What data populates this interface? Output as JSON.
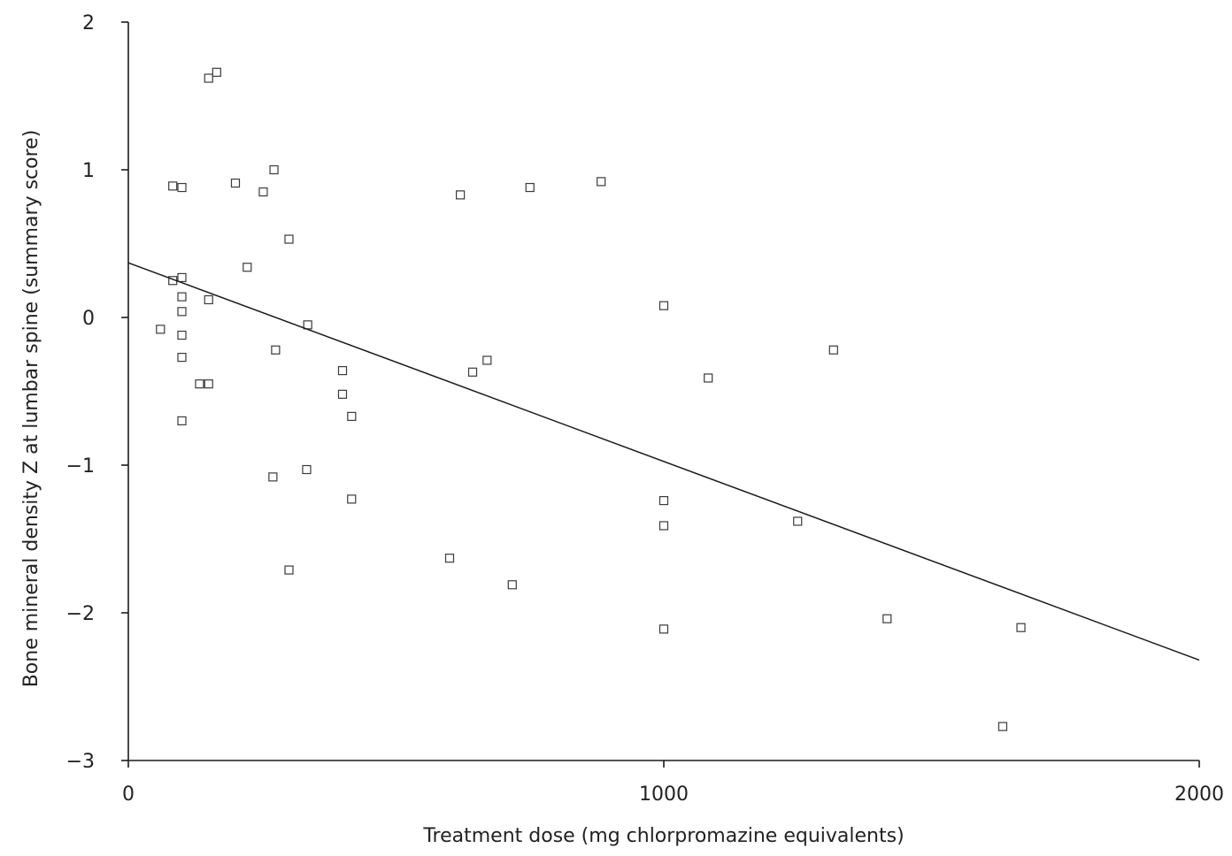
{
  "chart_data": {
    "type": "scatter",
    "title": "",
    "xlabel": "Treatment dose (mg chlorpromazine equivalents)",
    "ylabel": "Bone mineral density Z at lumbar spine (summary score)",
    "xlim": [
      0,
      2000
    ],
    "ylim": [
      -3,
      2
    ],
    "xticks": [
      0,
      1000,
      2000
    ],
    "yticks": [
      2,
      1,
      0,
      -1,
      -2,
      -3
    ],
    "xtick_labels": [
      "0",
      "1000",
      "2000"
    ],
    "ytick_labels": [
      "2",
      "1",
      "0",
      "−1",
      "−2",
      "−3"
    ],
    "grid": false,
    "legend": "none",
    "marker": "open-square",
    "points": [
      {
        "x": 150,
        "y": 1.62
      },
      {
        "x": 165,
        "y": 1.66
      },
      {
        "x": 83,
        "y": 0.89
      },
      {
        "x": 100,
        "y": 0.88
      },
      {
        "x": 200,
        "y": 0.91
      },
      {
        "x": 252,
        "y": 0.85
      },
      {
        "x": 272,
        "y": 1.0
      },
      {
        "x": 300,
        "y": 0.53
      },
      {
        "x": 222,
        "y": 0.34
      },
      {
        "x": 83,
        "y": 0.25
      },
      {
        "x": 100,
        "y": 0.27
      },
      {
        "x": 100,
        "y": 0.14
      },
      {
        "x": 150,
        "y": 0.12
      },
      {
        "x": 100,
        "y": 0.04
      },
      {
        "x": 60,
        "y": -0.08
      },
      {
        "x": 100,
        "y": -0.12
      },
      {
        "x": 100,
        "y": -0.27
      },
      {
        "x": 275,
        "y": -0.22
      },
      {
        "x": 335,
        "y": -0.05
      },
      {
        "x": 133,
        "y": -0.45
      },
      {
        "x": 150,
        "y": -0.45
      },
      {
        "x": 100,
        "y": -0.7
      },
      {
        "x": 400,
        "y": -0.36
      },
      {
        "x": 400,
        "y": -0.52
      },
      {
        "x": 417,
        "y": -0.67
      },
      {
        "x": 270,
        "y": -1.08
      },
      {
        "x": 333,
        "y": -1.03
      },
      {
        "x": 417,
        "y": -1.23
      },
      {
        "x": 300,
        "y": -1.71
      },
      {
        "x": 620,
        "y": 0.83
      },
      {
        "x": 750,
        "y": 0.88
      },
      {
        "x": 883,
        "y": 0.92
      },
      {
        "x": 643,
        "y": -0.37
      },
      {
        "x": 670,
        "y": -0.29
      },
      {
        "x": 600,
        "y": -1.63
      },
      {
        "x": 717,
        "y": -1.81
      },
      {
        "x": 1000,
        "y": 0.08
      },
      {
        "x": 1083,
        "y": -0.41
      },
      {
        "x": 1000,
        "y": -1.24
      },
      {
        "x": 1000,
        "y": -1.41
      },
      {
        "x": 1000,
        "y": -2.11
      },
      {
        "x": 1317,
        "y": -0.22
      },
      {
        "x": 1250,
        "y": -1.38
      },
      {
        "x": 1417,
        "y": -2.04
      },
      {
        "x": 1667,
        "y": -2.1
      },
      {
        "x": 1633,
        "y": -2.77
      }
    ],
    "fit_line": {
      "x": [
        0,
        2000
      ],
      "y": [
        0.37,
        -2.32
      ]
    }
  }
}
